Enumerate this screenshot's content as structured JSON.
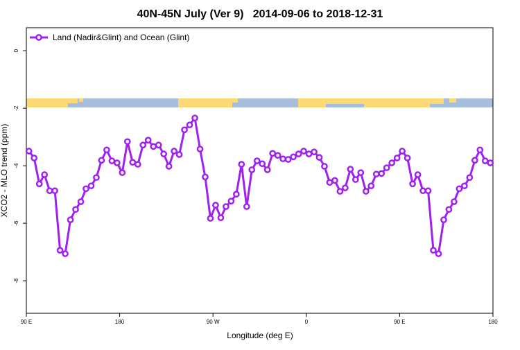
{
  "chart_data": {
    "type": "line",
    "title": "40N-45N July (Ver 9)   2014-09-06 to 2018-12-31",
    "x_label": "Longitude (deg E)",
    "y_label": "XCO2 - MLO trend (ppm)",
    "xlim": [
      90,
      540
    ],
    "ylim": [
      -9.13,
      0.8
    ],
    "xticks": [
      {
        "value": 90,
        "label": "90 E"
      },
      180,
      {
        "value": 270,
        "label": "90 W"
      },
      {
        "value": 360,
        "label": "0"
      },
      {
        "value": 450,
        "label": "90 E"
      },
      {
        "value": 540,
        "label": "180"
      }
    ],
    "yticks": [
      0,
      -2,
      -4,
      -6,
      -8
    ],
    "grid": false,
    "legend": "top-left",
    "x": [
      92.5,
      97.5,
      102.5,
      107.5,
      112.5,
      117.5,
      122.5,
      127.5,
      132.5,
      137.5,
      142.5,
      147.5,
      152.5,
      157.5,
      162.5,
      167.5,
      172.5,
      177.5,
      182.5,
      187.5,
      192.5,
      197.5,
      202.5,
      207.5,
      212.5,
      217.5,
      222.5,
      227.5,
      232.5,
      237.5,
      242.5,
      247.5,
      252.5,
      257.5,
      262.5,
      267.5,
      272.5,
      277.5,
      282.5,
      287.5,
      292.5,
      297.5,
      302.5,
      307.5,
      312.5,
      317.5,
      322.5,
      327.5,
      332.5,
      337.5,
      342.5,
      347.5,
      352.5,
      357.5,
      362.5,
      367.5,
      372.5,
      377.5,
      382.5,
      387.5,
      392.5,
      397.5,
      402.5,
      407.5,
      412.5,
      417.5,
      422.5,
      427.5,
      432.5,
      437.5,
      442.5,
      447.5,
      452.5,
      457.5,
      462.5,
      467.5,
      472.5,
      477.5,
      482.5,
      487.5,
      492.5,
      497.5,
      502.5,
      507.5,
      512.5,
      517.5,
      522.5,
      527.5,
      532.5,
      537.5
    ],
    "series": [
      {
        "name": "Land (Nadir&Glint) and Ocean (Glint)",
        "color": "#a020f0",
        "values": [
          -3.49,
          -3.73,
          -4.63,
          -4.31,
          -4.87,
          -4.87,
          -6.94,
          -7.06,
          -5.88,
          -5.52,
          -5.25,
          -4.8,
          -4.7,
          -4.41,
          -3.81,
          -3.45,
          -3.83,
          -3.9,
          -4.24,
          -3.16,
          -3.88,
          -3.95,
          -3.28,
          -3.11,
          -3.33,
          -3.28,
          -3.59,
          -4.02,
          -3.49,
          -3.61,
          -2.75,
          -2.58,
          -2.34,
          -3.42,
          -4.39,
          -5.83,
          -5.37,
          -5.81,
          -5.42,
          -5.23,
          -4.99,
          -3.95,
          -5.42,
          -4.14,
          -3.83,
          -3.93,
          -4.14,
          -3.57,
          -3.64,
          -3.76,
          -3.78,
          -3.69,
          -3.59,
          -3.49,
          -3.59,
          -3.52,
          -3.71,
          -4.02,
          -4.58,
          -4.51,
          -4.89,
          -4.77,
          -4.12,
          -4.48,
          -4.24,
          -4.89,
          -4.7,
          -4.29,
          -4.27,
          -4.07,
          -3.9,
          -3.73,
          -3.49,
          -3.73,
          -4.63,
          -4.31,
          -4.87,
          -4.87,
          -6.94,
          -7.06,
          -5.88,
          -5.52,
          -5.25,
          -4.8,
          -4.7,
          -4.41,
          -3.81,
          -3.45,
          -3.83,
          -3.9
        ]
      }
    ]
  }
}
